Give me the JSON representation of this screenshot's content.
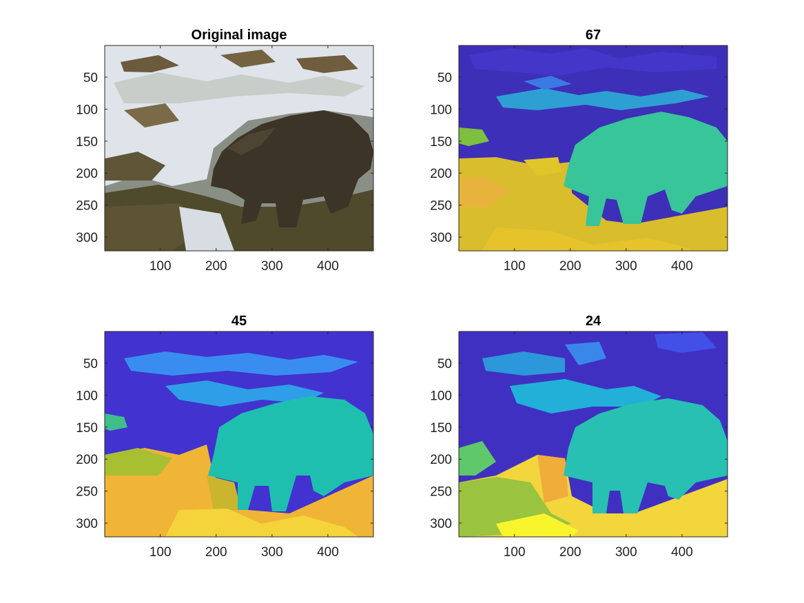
{
  "chart_data": [
    {
      "type": "image",
      "title": "Original image",
      "content": "photograph",
      "xlim": [
        0.5,
        481.5
      ],
      "ylim": [
        0.5,
        321.5
      ],
      "xticks": [
        100,
        200,
        300,
        400
      ],
      "yticks": [
        50,
        100,
        150,
        200,
        250,
        300
      ],
      "y_direction": "reverse"
    },
    {
      "type": "heatmap",
      "title": "67",
      "content": "segmentation label map",
      "colormap": "parula",
      "xlim": [
        0.5,
        481.5
      ],
      "ylim": [
        0.5,
        321.5
      ],
      "xticks": [
        100,
        200,
        300,
        400
      ],
      "yticks": [
        50,
        100,
        150,
        200,
        250,
        300
      ],
      "y_direction": "reverse"
    },
    {
      "type": "heatmap",
      "title": "45",
      "content": "segmentation label map",
      "colormap": "parula",
      "xlim": [
        0.5,
        481.5
      ],
      "ylim": [
        0.5,
        321.5
      ],
      "xticks": [
        100,
        200,
        300,
        400
      ],
      "yticks": [
        50,
        100,
        150,
        200,
        250,
        300
      ],
      "y_direction": "reverse"
    },
    {
      "type": "heatmap",
      "title": "24",
      "content": "segmentation label map",
      "colormap": "parula",
      "xlim": [
        0.5,
        481.5
      ],
      "ylim": [
        0.5,
        321.5
      ],
      "xticks": [
        100,
        200,
        300,
        400
      ],
      "yticks": [
        50,
        100,
        150,
        200,
        250,
        300
      ],
      "y_direction": "reverse"
    }
  ]
}
